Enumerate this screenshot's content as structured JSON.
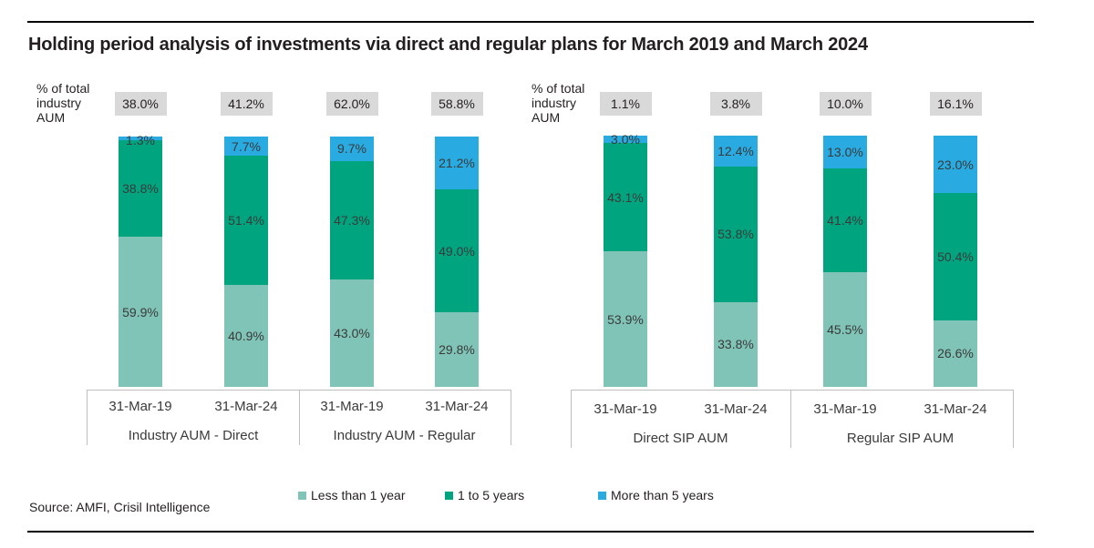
{
  "title": "Holding period analysis of investments via direct and regular plans for March 2019 and March 2024",
  "colors": {
    "lt1": "#80c4b8",
    "y1to5": "#00a57f",
    "gt5": "#29abe2",
    "box": "#d9d9d9"
  },
  "legend": [
    {
      "label": "Less than 1 year",
      "color": "#80c4b8"
    },
    {
      "label": "1 to 5 years",
      "color": "#00a57f"
    },
    {
      "label": "More than 5 years",
      "color": "#29abe2"
    }
  ],
  "source": "Source: AMFI, Crisil Intelligence",
  "chart_data": [
    {
      "type": "bar",
      "stacked": true,
      "ylabel": "% of total industry AUM",
      "categories": [
        "31-Mar-19",
        "31-Mar-24",
        "31-Mar-19",
        "31-Mar-24"
      ],
      "groups": [
        "Industry AUM - Direct",
        "Industry AUM - Regular"
      ],
      "share_of_total": [
        "38.0%",
        "41.2%",
        "62.0%",
        "58.8%"
      ],
      "series": [
        {
          "name": "Less than 1 year",
          "values": [
            59.9,
            40.9,
            43.0,
            29.8
          ]
        },
        {
          "name": "1 to 5 years",
          "values": [
            38.8,
            51.4,
            47.3,
            49.0
          ]
        },
        {
          "name": "More than 5 years",
          "values": [
            1.3,
            7.7,
            9.7,
            21.2
          ]
        }
      ]
    },
    {
      "type": "bar",
      "stacked": true,
      "ylabel": "% of total industry AUM",
      "categories": [
        "31-Mar-19",
        "31-Mar-24",
        "31-Mar-19",
        "31-Mar-24"
      ],
      "groups": [
        "Direct SIP AUM",
        "Regular SIP AUM"
      ],
      "share_of_total": [
        "1.1%",
        "3.8%",
        "10.0%",
        "16.1%"
      ],
      "series": [
        {
          "name": "Less than 1 year",
          "values": [
            53.9,
            33.8,
            45.5,
            26.6
          ]
        },
        {
          "name": "1 to 5 years",
          "values": [
            43.1,
            53.8,
            41.4,
            50.4
          ]
        },
        {
          "name": "More than 5 years",
          "values": [
            3.0,
            12.4,
            13.0,
            23.0
          ]
        }
      ]
    }
  ]
}
